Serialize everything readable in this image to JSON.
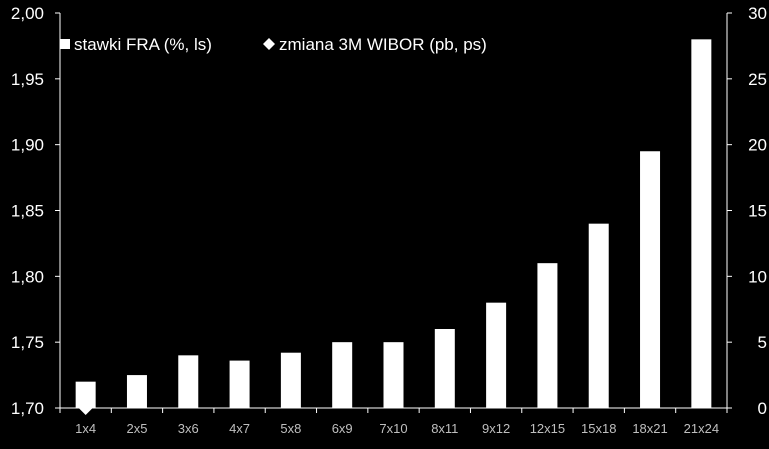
{
  "chart_data": {
    "type": "bar",
    "categories": [
      "1x4",
      "2x5",
      "3x6",
      "4x7",
      "5x8",
      "6x9",
      "7x10",
      "8x11",
      "9x12",
      "12x15",
      "15x18",
      "18x21",
      "21x24"
    ],
    "series": [
      {
        "name": "stawki FRA (%, ls)",
        "kind": "bar",
        "axis": "left",
        "color": "#ffffff",
        "values": [
          1.72,
          1.725,
          1.74,
          1.736,
          1.742,
          1.75,
          1.75,
          1.76,
          1.78,
          1.81,
          1.84,
          1.895,
          1.98
        ]
      },
      {
        "name": "zmiana 3M WIBOR (pb, ps)",
        "kind": "marker",
        "axis": "right",
        "color": "#ffffff",
        "values": [
          0,
          0.5,
          2,
          1.7,
          2.2,
          3,
          3,
          4,
          6,
          9,
          12,
          17.5,
          26
        ]
      }
    ],
    "y_left": {
      "min": 1.7,
      "max": 2.0,
      "ticks": [
        "1,70",
        "1,75",
        "1,80",
        "1,85",
        "1,90",
        "1,95",
        "2,00"
      ]
    },
    "y_right": {
      "min": 0,
      "max": 30,
      "ticks": [
        "0",
        "5",
        "10",
        "15",
        "20",
        "25",
        "30"
      ]
    },
    "legend": {
      "placement": "top-left"
    },
    "grid": false
  }
}
